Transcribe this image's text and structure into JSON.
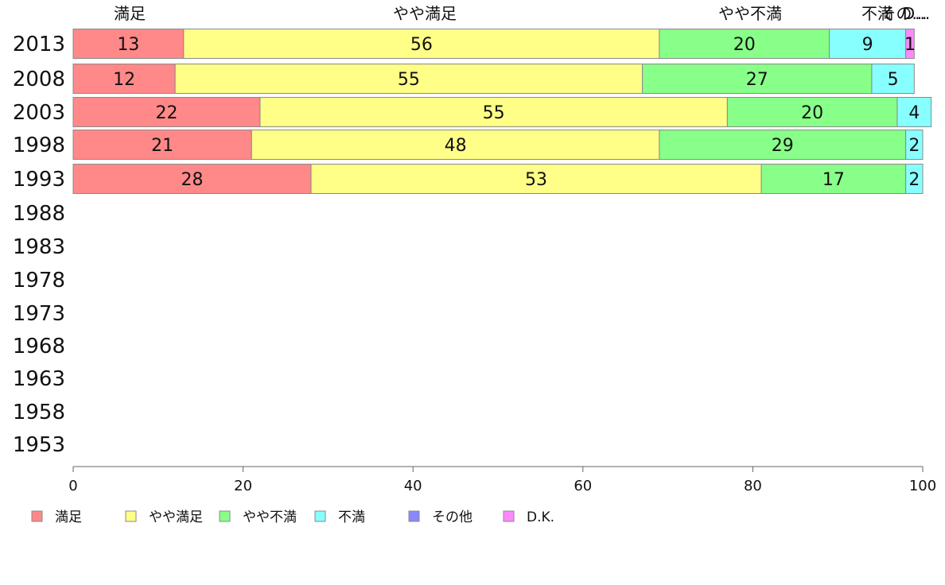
{
  "chart_data": {
    "type": "bar",
    "orientation": "horizontal",
    "stacked": true,
    "title": "",
    "xlabel": "",
    "ylabel": "",
    "xlim": [
      0,
      100
    ],
    "x_ticks": [
      "0",
      "20",
      "40",
      "60",
      "80",
      "100"
    ],
    "categories": [
      "2013",
      "2008",
      "2003",
      "1998",
      "1993",
      "1988",
      "1983",
      "1978",
      "1973",
      "1968",
      "1963",
      "1958",
      "1953"
    ],
    "series": [
      {
        "name": "満足",
        "color": "#ff8888",
        "values": [
          13,
          12,
          22,
          21,
          28,
          null,
          null,
          null,
          null,
          null,
          null,
          null,
          null
        ]
      },
      {
        "name": "やや満足",
        "color": "#ffff88",
        "values": [
          56,
          55,
          55,
          48,
          53,
          null,
          null,
          null,
          null,
          null,
          null,
          null,
          null
        ]
      },
      {
        "name": "やや不満",
        "color": "#88ff88",
        "values": [
          20,
          27,
          20,
          29,
          17,
          null,
          null,
          null,
          null,
          null,
          null,
          null,
          null
        ]
      },
      {
        "name": "不満",
        "color": "#88ffff",
        "values": [
          9,
          5,
          4,
          2,
          2,
          null,
          null,
          null,
          null,
          null,
          null,
          null,
          null
        ]
      },
      {
        "name": "その他",
        "color": "#8888ff",
        "values": [
          0,
          0,
          0,
          0,
          0,
          null,
          null,
          null,
          null,
          null,
          null,
          null,
          null
        ]
      },
      {
        "name": "D.K.",
        "color": "#ff88ff",
        "values": [
          1,
          0,
          0,
          0,
          0,
          null,
          null,
          null,
          null,
          null,
          null,
          null,
          null
        ]
      }
    ],
    "top_labels": [
      "満足",
      "やや満足",
      "やや不満",
      "不満",
      "その...",
      "D..."
    ],
    "legend_position": "bottom-left",
    "grid": false
  }
}
